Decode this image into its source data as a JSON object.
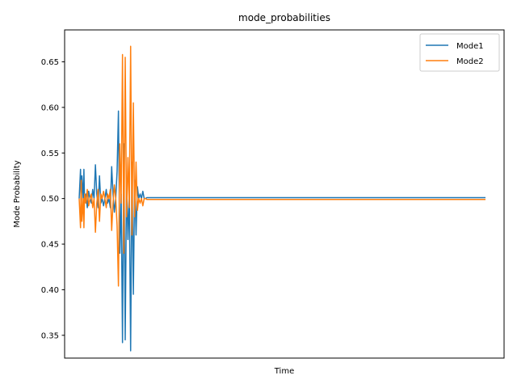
{
  "chart_data": {
    "type": "line",
    "title": "mode_probabilities",
    "xlabel": "Time",
    "ylabel": "Mode Probability",
    "xlim": [
      0,
      300
    ],
    "ylim": [
      0.325,
      0.685
    ],
    "yticks": [
      0.35,
      0.4,
      0.45,
      0.5,
      0.55,
      0.6,
      0.65
    ],
    "ytick_labels": [
      "0.35",
      "0.40",
      "0.45",
      "0.50",
      "0.55",
      "0.60",
      "0.65"
    ],
    "xticks": [],
    "grid": false,
    "legend": {
      "position": "top-right",
      "entries": [
        "Mode1",
        "Mode2"
      ]
    },
    "colors": {
      "Mode1": "#1f77b4",
      "Mode2": "#ff7f0e"
    },
    "series": [
      {
        "name": "Mode1",
        "x": [
          0,
          1,
          1.5,
          2,
          3,
          3.5,
          4,
          5,
          6,
          7,
          8,
          9,
          10,
          11,
          12,
          13,
          14,
          15,
          16,
          17,
          18,
          19,
          20,
          21,
          22,
          23,
          24,
          25,
          26,
          27,
          28,
          29,
          30,
          31,
          32,
          33,
          34,
          35,
          36,
          37,
          38,
          39,
          40,
          41,
          42,
          43,
          44,
          45,
          46,
          47,
          48,
          49,
          50,
          51,
          300
        ],
        "y": [
          0.5,
          0.532,
          0.48,
          0.525,
          0.5,
          0.532,
          0.495,
          0.505,
          0.49,
          0.508,
          0.5,
          0.495,
          0.51,
          0.5,
          0.537,
          0.505,
          0.49,
          0.525,
          0.495,
          0.5,
          0.492,
          0.5,
          0.51,
          0.495,
          0.5,
          0.49,
          0.535,
          0.505,
          0.485,
          0.5,
          0.53,
          0.596,
          0.44,
          0.505,
          0.342,
          0.56,
          0.345,
          0.52,
          0.455,
          0.51,
          0.333,
          0.54,
          0.395,
          0.52,
          0.46,
          0.513,
          0.5,
          0.505,
          0.5,
          0.508,
          0.5,
          0.5,
          0.501,
          0.501,
          0.501
        ]
      },
      {
        "name": "Mode2",
        "x": [
          0,
          1,
          1.5,
          2,
          3,
          3.5,
          4,
          5,
          6,
          7,
          8,
          9,
          10,
          11,
          12,
          13,
          14,
          15,
          16,
          17,
          18,
          19,
          20,
          21,
          22,
          23,
          24,
          25,
          26,
          27,
          28,
          29,
          30,
          31,
          32,
          33,
          34,
          35,
          36,
          37,
          38,
          39,
          40,
          41,
          42,
          43,
          44,
          45,
          46,
          47,
          48,
          49,
          50,
          51,
          300
        ],
        "y": [
          0.5,
          0.468,
          0.52,
          0.475,
          0.5,
          0.468,
          0.505,
          0.495,
          0.51,
          0.492,
          0.5,
          0.505,
          0.49,
          0.5,
          0.463,
          0.495,
          0.51,
          0.475,
          0.505,
          0.5,
          0.508,
          0.5,
          0.49,
          0.505,
          0.5,
          0.51,
          0.465,
          0.495,
          0.515,
          0.5,
          0.47,
          0.404,
          0.56,
          0.495,
          0.658,
          0.44,
          0.655,
          0.48,
          0.545,
          0.49,
          0.667,
          0.46,
          0.605,
          0.48,
          0.54,
          0.487,
          0.5,
          0.495,
          0.5,
          0.492,
          0.5,
          0.5,
          0.499,
          0.499,
          0.499
        ]
      }
    ]
  }
}
